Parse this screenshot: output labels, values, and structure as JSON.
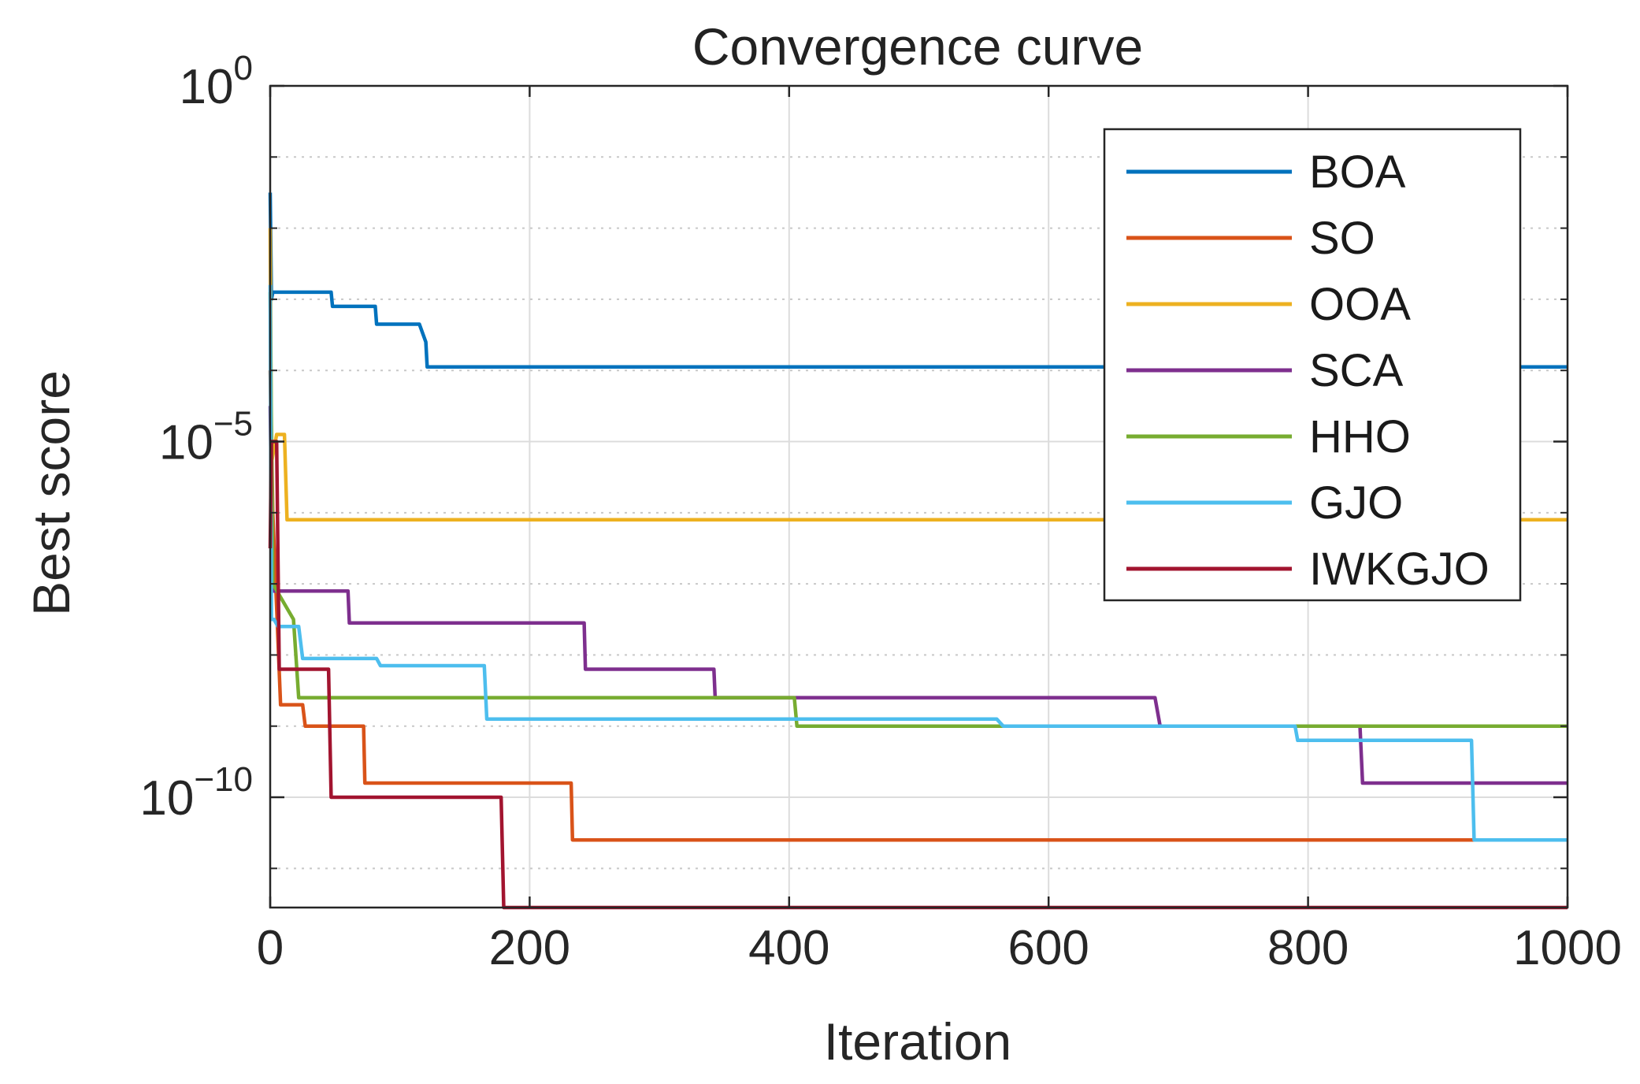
{
  "chart_data": {
    "type": "line",
    "title": "Convergence curve",
    "xlabel": "Iteration",
    "ylabel": "Best score",
    "xscale": "linear",
    "yscale": "log",
    "xlim": [
      0,
      1000
    ],
    "ylim_log10": [
      -11.55,
      0
    ],
    "xticks": [
      0,
      200,
      400,
      600,
      800,
      1000
    ],
    "xtick_labels": [
      "0",
      "200",
      "400",
      "600",
      "800",
      "1000"
    ],
    "yticks_log10": [
      0,
      -5,
      -10
    ],
    "ytick_labels": [
      {
        "base": "10",
        "exp": "0"
      },
      {
        "base": "10",
        "exp": "−5"
      },
      {
        "base": "10",
        "exp": "−10"
      }
    ],
    "minor_yticks_log10": [
      -1,
      -2,
      -3,
      -4,
      -6,
      -7,
      -8,
      -9,
      -11
    ],
    "grid": true,
    "legend_position": "top-right",
    "series": [
      {
        "name": "BOA",
        "color": "#0072BD",
        "points": [
          [
            0,
            -1.5
          ],
          [
            1,
            -3
          ],
          [
            2,
            -2.9
          ],
          [
            47,
            -2.9
          ],
          [
            48,
            -3.1
          ],
          [
            81,
            -3.1
          ],
          [
            82,
            -3.35
          ],
          [
            115,
            -3.35
          ],
          [
            120,
            -3.6
          ],
          [
            121,
            -3.95
          ],
          [
            1000,
            -3.95
          ]
        ]
      },
      {
        "name": "SO",
        "color": "#D95319",
        "points": [
          [
            0,
            -4
          ],
          [
            2,
            -6
          ],
          [
            8,
            -8.7
          ],
          [
            25,
            -8.7
          ],
          [
            27,
            -9.0
          ],
          [
            72,
            -9.0
          ],
          [
            73,
            -9.8
          ],
          [
            232,
            -9.8
          ],
          [
            233,
            -10.6
          ],
          [
            1000,
            -10.6
          ]
        ]
      },
      {
        "name": "OOA",
        "color": "#EDB120",
        "points": [
          [
            0,
            -2
          ],
          [
            1,
            -5.3
          ],
          [
            5,
            -4.9
          ],
          [
            11,
            -4.9
          ],
          [
            13,
            -6.1
          ],
          [
            1000,
            -6.1
          ]
        ]
      },
      {
        "name": "SCA",
        "color": "#7E2F8E",
        "points": [
          [
            0,
            -4.5
          ],
          [
            2,
            -7.1
          ],
          [
            60,
            -7.1
          ],
          [
            61,
            -7.55
          ],
          [
            242,
            -7.55
          ],
          [
            243,
            -8.2
          ],
          [
            342,
            -8.2
          ],
          [
            343,
            -8.6
          ],
          [
            682,
            -8.6
          ],
          [
            686,
            -9.0
          ],
          [
            840,
            -9.0
          ],
          [
            842,
            -9.8
          ],
          [
            1000,
            -9.8
          ]
        ]
      },
      {
        "name": "HHO",
        "color": "#77AC30",
        "points": [
          [
            0,
            -2.9
          ],
          [
            2,
            -7.0
          ],
          [
            18,
            -7.5
          ],
          [
            22,
            -8.6
          ],
          [
            404,
            -8.6
          ],
          [
            406,
            -9.0
          ],
          [
            1000,
            -9.0
          ]
        ]
      },
      {
        "name": "GJO",
        "color": "#4DBEEE",
        "points": [
          [
            0,
            -2.8
          ],
          [
            1,
            -7.5
          ],
          [
            3,
            -7.5
          ],
          [
            6,
            -7.6
          ],
          [
            22,
            -7.6
          ],
          [
            25,
            -8.05
          ],
          [
            82,
            -8.05
          ],
          [
            85,
            -8.15
          ],
          [
            165,
            -8.15
          ],
          [
            167,
            -8.9
          ],
          [
            560,
            -8.9
          ],
          [
            565,
            -9.0
          ],
          [
            790,
            -9.0
          ],
          [
            792,
            -9.2
          ],
          [
            926,
            -9.2
          ],
          [
            928,
            -10.6
          ],
          [
            1000,
            -10.6
          ]
        ]
      },
      {
        "name": "IWKGJO",
        "color": "#A2142F",
        "points": [
          [
            0,
            -6.5
          ],
          [
            1,
            -5
          ],
          [
            5,
            -5
          ],
          [
            7,
            -8.2
          ],
          [
            45,
            -8.2
          ],
          [
            47,
            -10.0
          ],
          [
            178,
            -10.0
          ],
          [
            180,
            -11.55
          ],
          [
            1000,
            -11.55
          ]
        ]
      }
    ]
  }
}
